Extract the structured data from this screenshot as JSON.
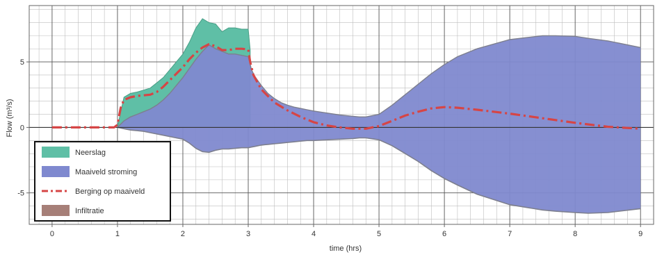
{
  "chart_data": {
    "type": "area",
    "xlabel": "time (hrs)",
    "ylabel": "Flow (m³/s)",
    "xlim": [
      -0.35,
      9.2
    ],
    "ylim": [
      -7.4,
      9.3
    ],
    "xticks": [
      0,
      1,
      2,
      3,
      4,
      5,
      6,
      7,
      8,
      9
    ],
    "yticks": [
      -5,
      0,
      5
    ],
    "grid": true,
    "legend_position": "bottom-left",
    "colors": {
      "neerslag": "#5fbfa6",
      "maaiveld": "#7f89cf",
      "maaiveld_edge": "#7d7f8e",
      "berging": "#d64545",
      "infiltratie": "#a67f78",
      "grid_major": "#555555",
      "grid_minor": "#bdbdbd"
    },
    "legend": [
      "Neerslag",
      "Maaiveld stroming",
      "Berging op maaiveld",
      "Infiltratie"
    ],
    "series": [
      {
        "name": "Neerslag",
        "kind": "band",
        "x": [
          1.0,
          1.05,
          1.1,
          1.2,
          1.3,
          1.4,
          1.5,
          1.6,
          1.7,
          1.8,
          1.9,
          2.0,
          2.1,
          2.2,
          2.3,
          2.4,
          2.5,
          2.6,
          2.7,
          2.8,
          2.9,
          3.0,
          3.03
        ],
        "lower": [
          0.0,
          0.0,
          0.0,
          0.0,
          0.0,
          0.0,
          0.0,
          0.0,
          0.0,
          0.0,
          0.0,
          0.0,
          0.0,
          0.0,
          0.0,
          0.0,
          0.0,
          0.0,
          0.0,
          0.0,
          0.0,
          0.0,
          0.0
        ],
        "upper": [
          0.0,
          1.2,
          2.3,
          2.6,
          2.7,
          2.85,
          3.0,
          3.4,
          3.8,
          4.4,
          5.0,
          5.6,
          6.5,
          7.6,
          8.3,
          8.0,
          7.9,
          7.3,
          7.6,
          7.6,
          7.5,
          7.5,
          5.9
        ]
      },
      {
        "name": "Maaiveld stroming",
        "kind": "band",
        "x": [
          1.0,
          1.1,
          1.2,
          1.3,
          1.4,
          1.5,
          1.6,
          1.7,
          1.8,
          1.9,
          2.0,
          2.1,
          2.2,
          2.3,
          2.4,
          2.5,
          2.6,
          2.7,
          2.8,
          2.9,
          3.0,
          3.05,
          3.1,
          3.2,
          3.3,
          3.4,
          3.5,
          3.6,
          3.7,
          3.8,
          3.9,
          4.0,
          4.2,
          4.4,
          4.6,
          4.7,
          4.8,
          5.0,
          5.2,
          5.4,
          5.6,
          5.8,
          6.0,
          6.2,
          6.5,
          7.0,
          7.5,
          7.7,
          8.0,
          8.2,
          8.5,
          9.0
        ],
        "upper": [
          0.0,
          0.5,
          0.8,
          1.0,
          1.2,
          1.4,
          1.7,
          2.1,
          2.6,
          3.2,
          3.8,
          4.5,
          5.2,
          5.8,
          6.3,
          6.0,
          5.8,
          5.6,
          5.6,
          5.5,
          5.4,
          4.4,
          3.9,
          3.2,
          2.6,
          2.2,
          1.9,
          1.7,
          1.55,
          1.45,
          1.35,
          1.25,
          1.1,
          0.95,
          0.85,
          0.8,
          0.8,
          1.0,
          1.7,
          2.5,
          3.3,
          4.1,
          4.8,
          5.4,
          6.0,
          6.7,
          7.0,
          7.0,
          6.95,
          6.8,
          6.6,
          6.1
        ],
        "lower": [
          0.0,
          -0.1,
          -0.2,
          -0.25,
          -0.3,
          -0.4,
          -0.5,
          -0.6,
          -0.7,
          -0.8,
          -0.9,
          -1.2,
          -1.6,
          -1.85,
          -1.9,
          -1.75,
          -1.65,
          -1.65,
          -1.6,
          -1.55,
          -1.55,
          -1.5,
          -1.45,
          -1.35,
          -1.3,
          -1.25,
          -1.2,
          -1.15,
          -1.1,
          -1.05,
          -1.0,
          -1.0,
          -0.95,
          -0.9,
          -0.85,
          -0.8,
          -0.8,
          -0.95,
          -1.4,
          -2.0,
          -2.6,
          -3.3,
          -3.9,
          -4.4,
          -5.1,
          -5.9,
          -6.3,
          -6.4,
          -6.5,
          -6.55,
          -6.5,
          -6.2
        ]
      },
      {
        "name": "Berging op maaiveld",
        "kind": "line",
        "x": [
          0.0,
          0.5,
          0.95,
          1.0,
          1.05,
          1.1,
          1.2,
          1.3,
          1.4,
          1.5,
          1.6,
          1.7,
          1.8,
          1.9,
          2.0,
          2.1,
          2.2,
          2.3,
          2.4,
          2.5,
          2.6,
          2.7,
          2.8,
          2.9,
          3.0,
          3.03,
          3.08,
          3.2,
          3.4,
          3.6,
          3.8,
          4.0,
          4.2,
          4.4,
          4.6,
          4.8,
          5.0,
          5.2,
          5.4,
          5.6,
          5.8,
          6.0,
          6.2,
          6.5,
          7.0,
          7.5,
          8.0,
          8.5,
          9.0
        ],
        "y": [
          0.0,
          0.0,
          0.0,
          0.2,
          1.5,
          2.1,
          2.3,
          2.4,
          2.45,
          2.5,
          2.7,
          3.1,
          3.6,
          4.1,
          4.6,
          5.2,
          5.7,
          6.1,
          6.35,
          6.2,
          5.9,
          5.9,
          6.0,
          6.0,
          5.95,
          5.0,
          4.0,
          2.9,
          1.9,
          1.3,
          0.8,
          0.4,
          0.15,
          0.0,
          -0.1,
          -0.1,
          0.1,
          0.5,
          0.9,
          1.2,
          1.45,
          1.55,
          1.5,
          1.35,
          1.05,
          0.7,
          0.35,
          0.05,
          -0.1
        ]
      },
      {
        "name": "Infiltratie",
        "kind": "band",
        "x": [],
        "lower": [],
        "upper": []
      }
    ]
  }
}
